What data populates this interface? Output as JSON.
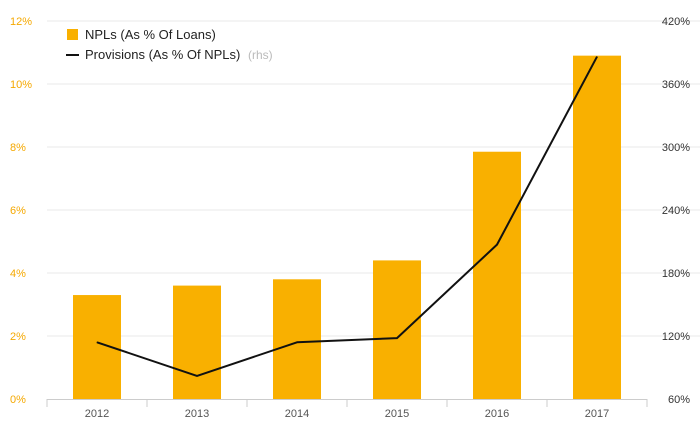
{
  "chart_data": {
    "type": "bar",
    "categories": [
      "2012",
      "2013",
      "2014",
      "2015",
      "2016",
      "2017"
    ],
    "series": [
      {
        "name": "NPLs (As % Of Loans)",
        "type": "bar",
        "axis": "left",
        "color": "#f9b000",
        "values": [
          3.3,
          3.6,
          3.8,
          4.4,
          7.85,
          10.9
        ]
      },
      {
        "name": "Provisions (As % Of NPLs)",
        "name_suffix": "(rhs)",
        "type": "line",
        "axis": "right",
        "color": "#111111",
        "values": [
          114,
          82,
          114,
          118,
          207,
          386
        ]
      }
    ],
    "y_left": {
      "ylim": [
        0,
        12
      ],
      "ticks": [
        0,
        2,
        4,
        6,
        8,
        10,
        12
      ],
      "tick_labels": [
        "0%",
        "2%",
        "4%",
        "6%",
        "8%",
        "10%",
        "12%"
      ],
      "color": "#f5a800"
    },
    "y_right": {
      "ylim": [
        60,
        420
      ],
      "ticks": [
        60,
        120,
        180,
        240,
        300,
        360,
        420
      ],
      "tick_labels": [
        "60%",
        "120%",
        "180%",
        "240%",
        "300%",
        "360%",
        "420%"
      ],
      "color": "#333333"
    },
    "grid": true,
    "legend_position": "top-left"
  }
}
